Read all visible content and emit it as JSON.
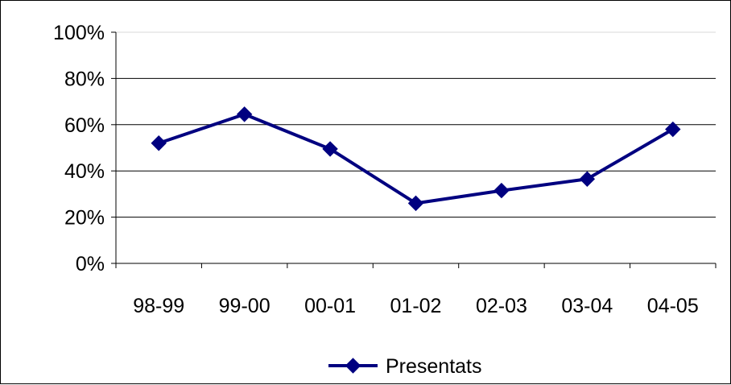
{
  "chart_data": {
    "type": "line",
    "categories": [
      "98-99",
      "99-00",
      "00-01",
      "01-02",
      "02-03",
      "03-04",
      "04-05"
    ],
    "series": [
      {
        "name": "Presentats",
        "values": [
          52,
          64.5,
          49.5,
          26,
          31.5,
          36.5,
          58
        ],
        "color": "#000080"
      }
    ],
    "y_ticks": [
      "0%",
      "20%",
      "40%",
      "60%",
      "80%",
      "100%"
    ],
    "ylim": [
      0,
      100
    ],
    "grid": true,
    "legend": "bottom"
  }
}
